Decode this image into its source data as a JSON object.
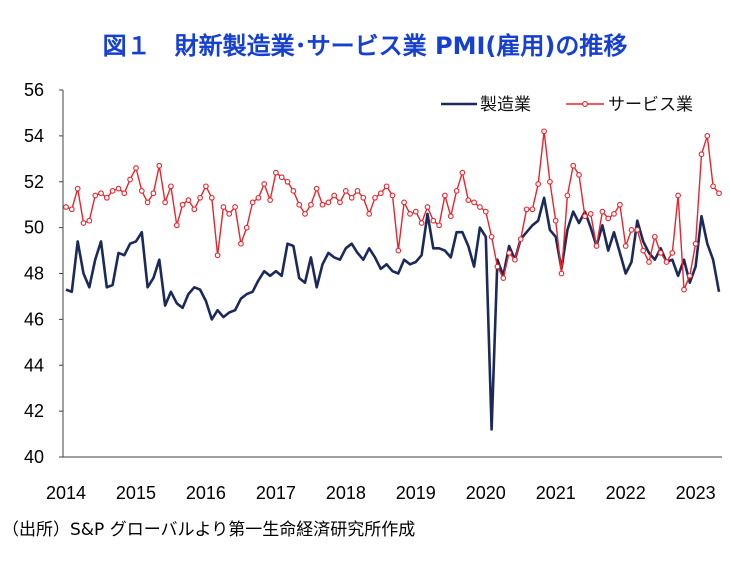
{
  "chart_data": {
    "type": "line",
    "title": "図１　財新製造業･サービス業 PMI(雇用)の推移",
    "ylim": [
      40,
      56
    ],
    "y_ticks": [
      40,
      42,
      44,
      46,
      48,
      50,
      52,
      54,
      56
    ],
    "x_tick_labels": [
      "2014",
      "2015",
      "2016",
      "2017",
      "2018",
      "2019",
      "2020",
      "2021",
      "2022",
      "2023"
    ],
    "series": [
      {
        "name": "製造業",
        "color": "#1b2a5a",
        "values": [
          47.3,
          47.2,
          49.4,
          48.0,
          47.4,
          48.6,
          49.4,
          47.4,
          47.5,
          48.9,
          48.8,
          49.3,
          49.4,
          49.8,
          47.4,
          47.8,
          48.6,
          46.6,
          47.2,
          46.7,
          46.5,
          47.1,
          47.4,
          47.3,
          46.8,
          46.0,
          46.4,
          46.1,
          46.3,
          46.4,
          46.9,
          47.1,
          47.2,
          47.7,
          48.1,
          47.9,
          48.1,
          47.9,
          49.3,
          49.2,
          47.8,
          47.6,
          48.7,
          47.4,
          48.4,
          48.9,
          48.7,
          48.6,
          49.1,
          49.3,
          48.9,
          48.6,
          49.1,
          48.7,
          48.2,
          48.4,
          48.1,
          48.0,
          48.6,
          48.4,
          48.5,
          48.8,
          50.6,
          49.1,
          49.1,
          49.0,
          48.7,
          49.8,
          49.8,
          49.2,
          48.3,
          50.0,
          49.6,
          41.2,
          48.6,
          47.9,
          49.2,
          48.6,
          49.5,
          49.8,
          50.1,
          50.3,
          51.3,
          49.9,
          49.6,
          48.2,
          49.9,
          50.7,
          50.2,
          50.7,
          50.0,
          49.2,
          50.1,
          49.0,
          49.8,
          48.9,
          48.0,
          48.5,
          50.3,
          49.4,
          48.9,
          48.6,
          49.1,
          48.5,
          48.6,
          47.9,
          48.6,
          47.6,
          48.3,
          50.5,
          49.3,
          48.6,
          47.2
        ]
      },
      {
        "name": "サービス業",
        "color": "#e8242c",
        "values": [
          50.9,
          50.8,
          51.7,
          50.2,
          50.3,
          51.4,
          51.5,
          51.3,
          51.6,
          51.7,
          51.5,
          52.1,
          52.6,
          51.6,
          51.1,
          51.5,
          52.7,
          51.1,
          51.8,
          50.1,
          51.0,
          51.2,
          50.8,
          51.3,
          51.8,
          51.3,
          48.8,
          50.9,
          50.6,
          50.9,
          49.3,
          50.0,
          51.1,
          51.3,
          51.9,
          51.2,
          52.4,
          52.2,
          52.0,
          51.6,
          51.0,
          50.6,
          51.0,
          51.7,
          51.0,
          51.1,
          51.4,
          51.1,
          51.6,
          51.3,
          51.6,
          51.3,
          50.6,
          51.3,
          51.5,
          51.8,
          51.4,
          49.0,
          51.1,
          50.6,
          50.7,
          50.2,
          50.9,
          50.3,
          50.1,
          51.4,
          50.5,
          51.6,
          52.4,
          51.2,
          51.1,
          50.9,
          50.7,
          49.6,
          48.3,
          47.8,
          48.9,
          48.6,
          49.5,
          50.8,
          50.8,
          51.9,
          54.2,
          52.0,
          50.3,
          48.0,
          51.4,
          52.7,
          52.3,
          50.5,
          50.6,
          49.2,
          50.7,
          50.4,
          50.6,
          51.0,
          49.2,
          49.9,
          49.9,
          49.0,
          48.5,
          49.6,
          48.9,
          48.5,
          48.9,
          51.4,
          47.3,
          47.9,
          49.3,
          53.2,
          54.0,
          51.8,
          51.5
        ]
      }
    ]
  },
  "source_note": "（出所）S&P グローバルより第一生命経済研究所作成"
}
